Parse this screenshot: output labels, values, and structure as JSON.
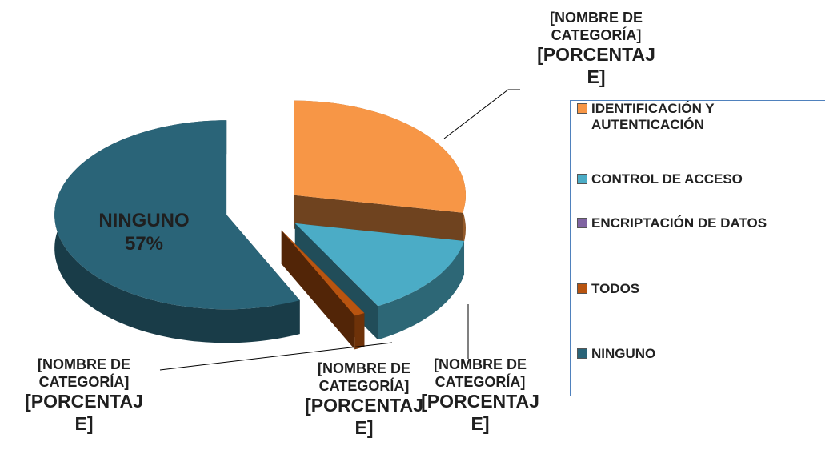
{
  "chart_data": {
    "type": "pie3d",
    "categories": [
      "IDENTIFICACIÓN Y AUTENTICACIÓN",
      "CONTROL DE ACCESO",
      "ENCRIPTACIÓN DE DATOS",
      "TODOS",
      "NINGUNO"
    ],
    "values": [
      28,
      14,
      0,
      1,
      57
    ],
    "value_labels": [
      "[PORCENTAJE]",
      "[PORCENTAJE]",
      "[PORCENTAJE]",
      "[PORCENTAJE]",
      "57%"
    ],
    "placeholder_name": "[NOMBRE DE CATEGORÍA]",
    "colors": [
      "#f79646",
      "#4bacc6",
      "#8064a2",
      "#b85410",
      "#2a6478"
    ],
    "legend": "right"
  }
}
